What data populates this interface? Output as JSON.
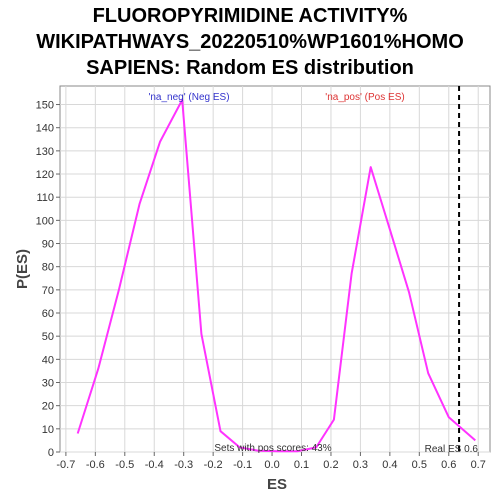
{
  "chart_data": {
    "type": "line",
    "title_lines": [
      "FLUOROPYRIMIDINE ACTIVITY%",
      "WIKIPATHWAYS_20220510%WP1601%HOMO",
      "SAPIENS: Random ES distribution"
    ],
    "xlabel": "ES",
    "ylabel": "P(ES)",
    "xlim": [
      -0.72,
      0.74
    ],
    "ylim": [
      0,
      158
    ],
    "xticks": [
      -0.7,
      -0.6,
      -0.5,
      -0.4,
      -0.3,
      -0.2,
      -0.1,
      0.0,
      0.1,
      0.2,
      0.3,
      0.4,
      0.5,
      0.6,
      0.7
    ],
    "xtick_labels": [
      "-0.7",
      "-0.6",
      "-0.5",
      "-0.4",
      "-0.3",
      "-0.2",
      "-0.1",
      "0.0",
      "0.1",
      "0.2",
      "0.3",
      "0.4",
      "0.5",
      "0.6",
      "0.7"
    ],
    "yticks": [
      0,
      10,
      20,
      30,
      40,
      50,
      60,
      70,
      80,
      90,
      100,
      110,
      120,
      130,
      140,
      150
    ],
    "ytick_labels": [
      "0",
      "10",
      "20",
      "30",
      "40",
      "50",
      "60",
      "70",
      "80",
      "90",
      "100",
      "110",
      "120",
      "130",
      "140",
      "150"
    ],
    "grid": true,
    "line_color": "#ff33ff",
    "x": [
      -0.66,
      -0.59,
      -0.52,
      -0.45,
      -0.38,
      -0.305,
      -0.24,
      -0.175,
      -0.11,
      -0.045,
      0.02,
      0.085,
      0.15,
      0.21,
      0.27,
      0.335,
      0.4,
      0.465,
      0.53,
      0.6,
      0.69
    ],
    "y": [
      8,
      36,
      70,
      107,
      134,
      152,
      51,
      9,
      2,
      0.5,
      0.3,
      0.3,
      2,
      14,
      77,
      123,
      96,
      69,
      34,
      15,
      5
    ],
    "real_es": 0.635,
    "real_es_label": "Real ES 0.6",
    "neg_label": "'na_neg' (Neg ES)",
    "pos_label": "'na_pos' (Pos ES)",
    "neg_label_color": "#3333cc",
    "pos_label_color": "#dd3333",
    "sets_text": "Sets with pos scores: 43%"
  }
}
